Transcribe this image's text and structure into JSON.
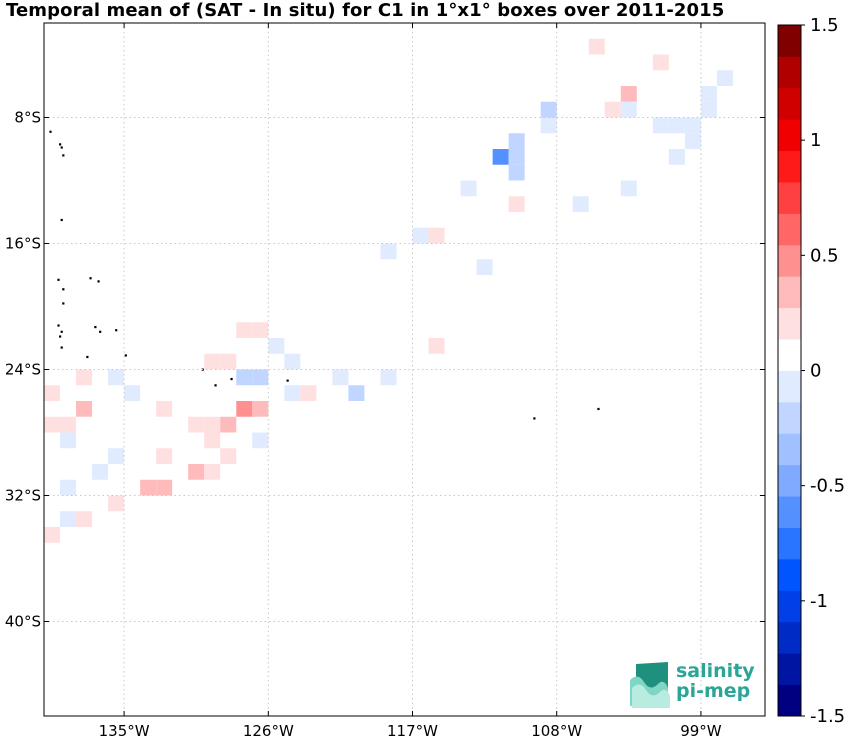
{
  "title": "Temporal mean of (SAT - In situ) for C1 in 1°x1° boxes over 2011-2015",
  "logo": {
    "line1": "salinity",
    "line2": "pi-mep"
  },
  "chart_data": {
    "type": "heatmap",
    "title": "Temporal mean of (SAT - In situ) for C1 in 1°x1° boxes over 2011-2015",
    "lon_range": [
      -140,
      -95
    ],
    "lat_range": [
      -46,
      -2
    ],
    "x_ticks": [
      {
        "lon": -135,
        "label": "135°W"
      },
      {
        "lon": -126,
        "label": "126°W"
      },
      {
        "lon": -117,
        "label": "117°W"
      },
      {
        "lon": -108,
        "label": "108°W"
      },
      {
        "lon": -99,
        "label": "99°W"
      }
    ],
    "y_ticks": [
      {
        "lat": -8,
        "label": "8°S"
      },
      {
        "lat": -16,
        "label": "16°S"
      },
      {
        "lat": -24,
        "label": "24°S"
      },
      {
        "lat": -32,
        "label": "32°S"
      },
      {
        "lat": -40,
        "label": "40°S"
      }
    ],
    "grid": true,
    "colorbar": {
      "min": -1.5,
      "max": 1.5,
      "steps": 22,
      "position": "right",
      "ticks": [
        {
          "value": 1.5,
          "label": "1.5"
        },
        {
          "value": 1,
          "label": "1"
        },
        {
          "value": 0.5,
          "label": "0.5"
        },
        {
          "value": 0,
          "label": "0"
        },
        {
          "value": -0.5,
          "label": "-0.5"
        },
        {
          "value": -1,
          "label": "-1"
        },
        {
          "value": -1.5,
          "label": "-1.5"
        }
      ],
      "colors": [
        "#000080",
        "#0015a2",
        "#002bc4",
        "#0040e6",
        "#0055ff",
        "#2a75ff",
        "#5590ff",
        "#80aaff",
        "#a0c0ff",
        "#c0d5ff",
        "#e0ebff",
        "#ffffff",
        "#ffe0e0",
        "#ffbbbb",
        "#ff9090",
        "#ff6666",
        "#ff4040",
        "#ff1a1a",
        "#f00000",
        "#d00000",
        "#b00000",
        "#800000"
      ]
    },
    "cells": [
      {
        "lon": -105.5,
        "lat": -3.5,
        "value": 0.15
      },
      {
        "lon": -101.5,
        "lat": -4.5,
        "value": 0.15
      },
      {
        "lon": -97.5,
        "lat": -5.5,
        "value": -0.07
      },
      {
        "lon": -103.5,
        "lat": -6.5,
        "value": 0.28
      },
      {
        "lon": -98.5,
        "lat": -6.5,
        "value": -0.07
      },
      {
        "lon": -108.5,
        "lat": -7.5,
        "value": -0.2
      },
      {
        "lon": -104.5,
        "lat": -7.5,
        "value": 0.15
      },
      {
        "lon": -103.5,
        "lat": -7.5,
        "value": -0.07
      },
      {
        "lon": -98.5,
        "lat": -7.5,
        "value": -0.07
      },
      {
        "lon": -108.5,
        "lat": -8.5,
        "value": -0.07
      },
      {
        "lon": -101.5,
        "lat": -8.5,
        "value": -0.07
      },
      {
        "lon": -100.5,
        "lat": -8.5,
        "value": -0.07
      },
      {
        "lon": -99.5,
        "lat": -8.5,
        "value": -0.07
      },
      {
        "lon": -110.5,
        "lat": -9.5,
        "value": -0.2
      },
      {
        "lon": -99.5,
        "lat": -9.5,
        "value": -0.07
      },
      {
        "lon": -111.5,
        "lat": -10.5,
        "value": -0.55
      },
      {
        "lon": -110.5,
        "lat": -10.5,
        "value": -0.2
      },
      {
        "lon": -100.5,
        "lat": -10.5,
        "value": -0.07
      },
      {
        "lon": -110.5,
        "lat": -11.5,
        "value": -0.2
      },
      {
        "lon": -113.5,
        "lat": -12.5,
        "value": -0.12
      },
      {
        "lon": -103.5,
        "lat": -12.5,
        "value": -0.12
      },
      {
        "lon": -110.5,
        "lat": -13.5,
        "value": 0.15
      },
      {
        "lon": -106.5,
        "lat": -13.5,
        "value": -0.12
      },
      {
        "lon": -116.5,
        "lat": -15.5,
        "value": -0.12
      },
      {
        "lon": -115.5,
        "lat": -15.5,
        "value": 0.15
      },
      {
        "lon": -118.5,
        "lat": -16.5,
        "value": -0.12
      },
      {
        "lon": -112.5,
        "lat": -17.5,
        "value": -0.12
      },
      {
        "lon": -127.5,
        "lat": -21.5,
        "value": 0.15
      },
      {
        "lon": -126.5,
        "lat": -21.5,
        "value": 0.15
      },
      {
        "lon": -125.5,
        "lat": -22.5,
        "value": -0.07
      },
      {
        "lon": -115.5,
        "lat": -22.5,
        "value": 0.15
      },
      {
        "lon": -129.5,
        "lat": -23.5,
        "value": 0.15
      },
      {
        "lon": -128.5,
        "lat": -23.5,
        "value": 0.15
      },
      {
        "lon": -124.5,
        "lat": -23.5,
        "value": -0.07
      },
      {
        "lon": -137.5,
        "lat": -24.5,
        "value": 0.15
      },
      {
        "lon": -135.5,
        "lat": -24.5,
        "value": -0.12
      },
      {
        "lon": -127.5,
        "lat": -24.5,
        "value": -0.2
      },
      {
        "lon": -126.5,
        "lat": -24.5,
        "value": -0.2
      },
      {
        "lon": -121.5,
        "lat": -24.5,
        "value": -0.12
      },
      {
        "lon": -118.5,
        "lat": -24.5,
        "value": -0.12
      },
      {
        "lon": -139.5,
        "lat": -25.5,
        "value": 0.15
      },
      {
        "lon": -134.5,
        "lat": -25.5,
        "value": -0.12
      },
      {
        "lon": -124.5,
        "lat": -25.5,
        "value": -0.07
      },
      {
        "lon": -123.5,
        "lat": -25.5,
        "value": 0.15
      },
      {
        "lon": -120.5,
        "lat": -25.5,
        "value": -0.2
      },
      {
        "lon": -137.5,
        "lat": -26.5,
        "value": 0.32
      },
      {
        "lon": -132.5,
        "lat": -26.5,
        "value": 0.15
      },
      {
        "lon": -127.5,
        "lat": -26.5,
        "value": 0.45
      },
      {
        "lon": -126.5,
        "lat": -26.5,
        "value": 0.28
      },
      {
        "lon": -139.5,
        "lat": -27.5,
        "value": 0.2
      },
      {
        "lon": -138.5,
        "lat": -27.5,
        "value": 0.2
      },
      {
        "lon": -130.5,
        "lat": -27.5,
        "value": 0.2
      },
      {
        "lon": -129.5,
        "lat": -27.5,
        "value": 0.2
      },
      {
        "lon": -128.5,
        "lat": -27.5,
        "value": 0.32
      },
      {
        "lon": -138.5,
        "lat": -28.5,
        "value": -0.12
      },
      {
        "lon": -129.5,
        "lat": -28.5,
        "value": 0.2
      },
      {
        "lon": -126.5,
        "lat": -28.5,
        "value": -0.12
      },
      {
        "lon": -135.5,
        "lat": -29.5,
        "value": -0.12
      },
      {
        "lon": -132.5,
        "lat": -29.5,
        "value": 0.15
      },
      {
        "lon": -128.5,
        "lat": -29.5,
        "value": 0.15
      },
      {
        "lon": -136.5,
        "lat": -30.5,
        "value": -0.12
      },
      {
        "lon": -130.5,
        "lat": -30.5,
        "value": 0.28
      },
      {
        "lon": -129.5,
        "lat": -30.5,
        "value": 0.2
      },
      {
        "lon": -138.5,
        "lat": -31.5,
        "value": -0.12
      },
      {
        "lon": -133.5,
        "lat": -31.5,
        "value": 0.32
      },
      {
        "lon": -132.5,
        "lat": -31.5,
        "value": 0.32
      },
      {
        "lon": -135.5,
        "lat": -32.5,
        "value": 0.2
      },
      {
        "lon": -138.5,
        "lat": -33.5,
        "value": -0.12
      },
      {
        "lon": -137.5,
        "lat": -33.5,
        "value": 0.15
      },
      {
        "lon": -139.5,
        "lat": -34.5,
        "value": 0.15
      }
    ],
    "islands": [
      {
        "lon": -139.6,
        "lat": -8.9
      },
      {
        "lon": -139.0,
        "lat": -9.7
      },
      {
        "lon": -138.9,
        "lat": -9.9
      },
      {
        "lon": -138.8,
        "lat": -10.4
      },
      {
        "lon": -138.9,
        "lat": -14.5
      },
      {
        "lon": -139.1,
        "lat": -18.3
      },
      {
        "lon": -138.8,
        "lat": -18.9
      },
      {
        "lon": -137.1,
        "lat": -18.2
      },
      {
        "lon": -136.6,
        "lat": -18.4
      },
      {
        "lon": -138.8,
        "lat": -19.8
      },
      {
        "lon": -139.1,
        "lat": -21.2
      },
      {
        "lon": -138.9,
        "lat": -21.6
      },
      {
        "lon": -139.0,
        "lat": -21.9
      },
      {
        "lon": -136.8,
        "lat": -21.3
      },
      {
        "lon": -136.5,
        "lat": -21.6
      },
      {
        "lon": -135.5,
        "lat": -21.5
      },
      {
        "lon": -138.9,
        "lat": -22.6
      },
      {
        "lon": -137.3,
        "lat": -23.2
      },
      {
        "lon": -134.9,
        "lat": -23.1
      },
      {
        "lon": -130.1,
        "lat": -24.0
      },
      {
        "lon": -128.3,
        "lat": -24.6
      },
      {
        "lon": -129.3,
        "lat": -25.0
      },
      {
        "lon": -124.8,
        "lat": -24.7
      },
      {
        "lon": -109.4,
        "lat": -27.1
      },
      {
        "lon": -105.4,
        "lat": -26.5
      }
    ]
  }
}
